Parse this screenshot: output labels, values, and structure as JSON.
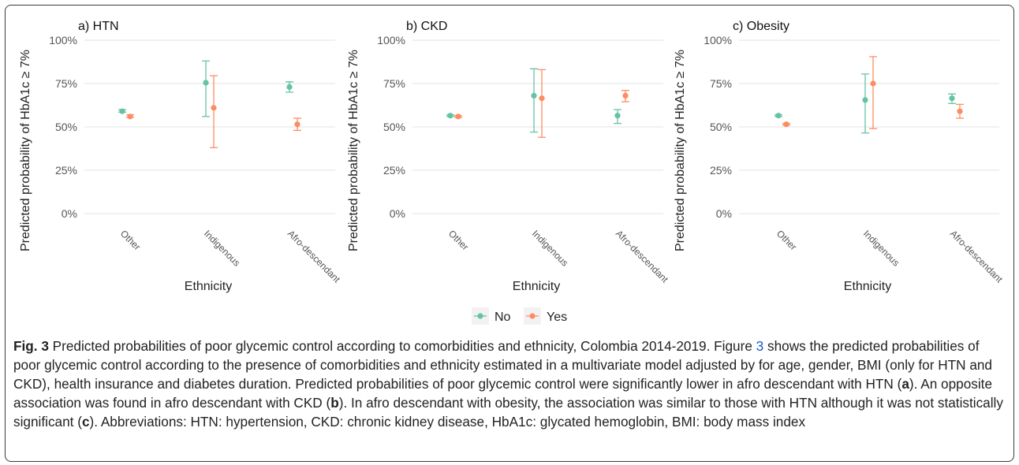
{
  "chart_data": [
    {
      "type": "scatter",
      "title": "a) HTN",
      "xlabel": "Ethnicity",
      "ylabel": "Predicted probability of HbA1c ≥ 7%",
      "categories": [
        "Other",
        "Indigenous",
        "Afro-descendant"
      ],
      "yticks": [
        "0%",
        "25%",
        "50%",
        "75%",
        "100%"
      ],
      "ylim": [
        0,
        1
      ],
      "grid": true,
      "series": [
        {
          "name": "No",
          "values": [
            0.59,
            0.755,
            0.73
          ],
          "lower": [
            0.585,
            0.56,
            0.7
          ],
          "upper": [
            0.6,
            0.88,
            0.76
          ]
        },
        {
          "name": "Yes",
          "values": [
            0.56,
            0.61,
            0.515
          ],
          "lower": [
            0.555,
            0.38,
            0.48
          ],
          "upper": [
            0.57,
            0.795,
            0.55
          ]
        }
      ]
    },
    {
      "type": "scatter",
      "title": "b) CKD",
      "xlabel": "Ethnicity",
      "ylabel": "Predicted probability of HbA1c ≥ 7%",
      "categories": [
        "Other",
        "Indigenous",
        "Afro-descendant"
      ],
      "yticks": [
        "0%",
        "25%",
        "50%",
        "75%",
        "100%"
      ],
      "ylim": [
        0,
        1
      ],
      "grid": true,
      "series": [
        {
          "name": "No",
          "values": [
            0.565,
            0.68,
            0.565
          ],
          "lower": [
            0.56,
            0.47,
            0.52
          ],
          "upper": [
            0.57,
            0.835,
            0.6
          ]
        },
        {
          "name": "Yes",
          "values": [
            0.56,
            0.665,
            0.68
          ],
          "lower": [
            0.555,
            0.44,
            0.645
          ],
          "upper": [
            0.565,
            0.83,
            0.71
          ]
        }
      ]
    },
    {
      "type": "scatter",
      "title": "c) Obesity",
      "xlabel": "Ethnicity",
      "ylabel": "Predicted probability of HbA1c ≥ 7%",
      "categories": [
        "Other",
        "Indigenous",
        "Afro-descendant"
      ],
      "yticks": [
        "0%",
        "25%",
        "50%",
        "75%",
        "100%"
      ],
      "ylim": [
        0,
        1
      ],
      "grid": true,
      "series": [
        {
          "name": "No",
          "values": [
            0.565,
            0.655,
            0.665
          ],
          "lower": [
            0.56,
            0.465,
            0.635
          ],
          "upper": [
            0.57,
            0.805,
            0.69
          ]
        },
        {
          "name": "Yes",
          "values": [
            0.515,
            0.75,
            0.59
          ],
          "lower": [
            0.51,
            0.49,
            0.55
          ],
          "upper": [
            0.52,
            0.905,
            0.63
          ]
        }
      ]
    }
  ],
  "legend": {
    "placement": "bottom",
    "items": [
      {
        "label": "No",
        "color": "#66c2a5"
      },
      {
        "label": "Yes",
        "color": "#fc8d62"
      }
    ]
  },
  "colors": {
    "no": "#66c2a5",
    "yes": "#fc8d62",
    "grid": "#e3e3e3",
    "axis_text": "#555555",
    "link": "#1a55c5"
  },
  "caption": {
    "label": "Fig. 3",
    "s1": " Predicted probabilities of poor glycemic control according to comorbidities and ethnicity, Colombia 2014-2019. Figure ",
    "link": "3",
    "s2": " shows the predicted probabilities of poor glycemic control according to the presence of comorbidities and ethnicity estimated in a multivariate model adjusted by for age, gender, BMI (only for HTN and CKD), health insurance and diabetes duration. Predicted probabilities of poor glycemic control were significantly lower in afro descendant with HTN (",
    "b1": "a",
    "s3": "). An opposite association was found in afro descendant with CKD (",
    "b2": "b",
    "s4": "). In afro descendant with obesity, the association was similar to those with HTN although it was not statistically significant (",
    "b3": "c",
    "s5": "). Abbreviations: HTN: hypertension, CKD: chronic kidney disease, HbA1c: glycated hemoglobin, BMI: body mass index"
  }
}
